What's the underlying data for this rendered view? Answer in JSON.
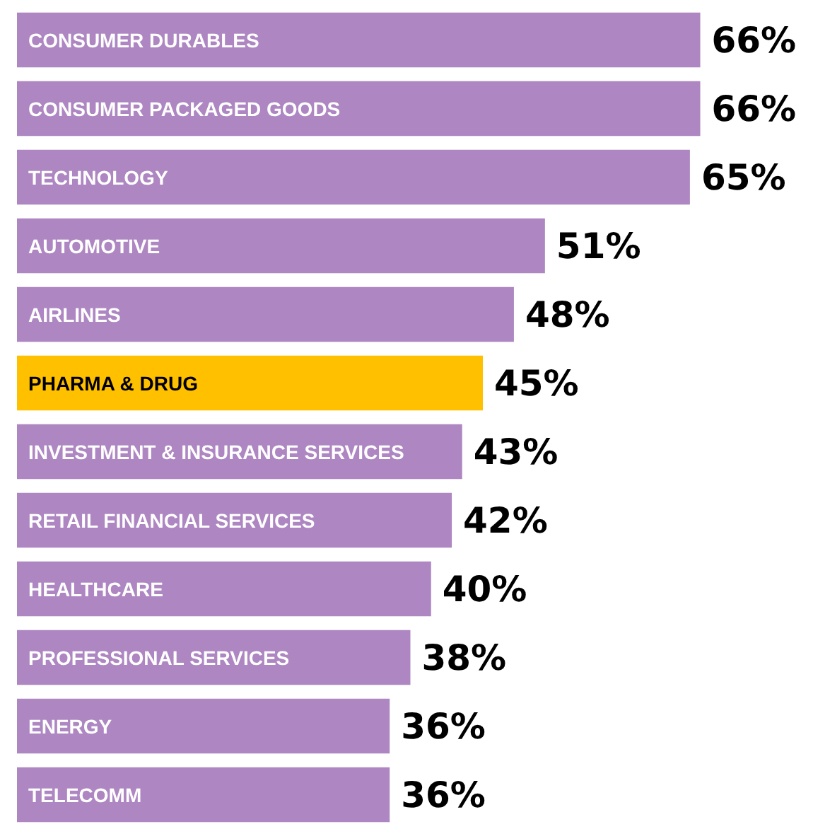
{
  "chart_data": {
    "type": "bar",
    "orientation": "horizontal",
    "data_labels": true,
    "value_labels": [
      "66%",
      "66%",
      "65%",
      "51%",
      "48%",
      "45%",
      "43%",
      "42%",
      "40%",
      "38%",
      "36%",
      "36%"
    ],
    "categories": [
      "CONSUMER DURABLES",
      "CONSUMER PACKAGED GOODS",
      "TECHNOLOGY",
      "AUTOMOTIVE",
      "AIRLINES",
      "PHARMA & DRUG",
      "INVESTMENT & INSURANCE SERVICES",
      "RETAIL FINANCIAL SERVICES",
      "HEALTHCARE",
      "PROFESSIONAL SERVICES",
      "ENERGY",
      "TELECOMM"
    ],
    "values": [
      66,
      66,
      65,
      51,
      48,
      45,
      43,
      42,
      40,
      38,
      36,
      36
    ],
    "colors": [
      "#ad86c2",
      "#ad86c2",
      "#ad86c2",
      "#ad86c2",
      "#ad86c2",
      "#ffc000",
      "#ad86c2",
      "#ad86c2",
      "#ad86c2",
      "#ad86c2",
      "#ad86c2",
      "#ad86c2"
    ]
  }
}
